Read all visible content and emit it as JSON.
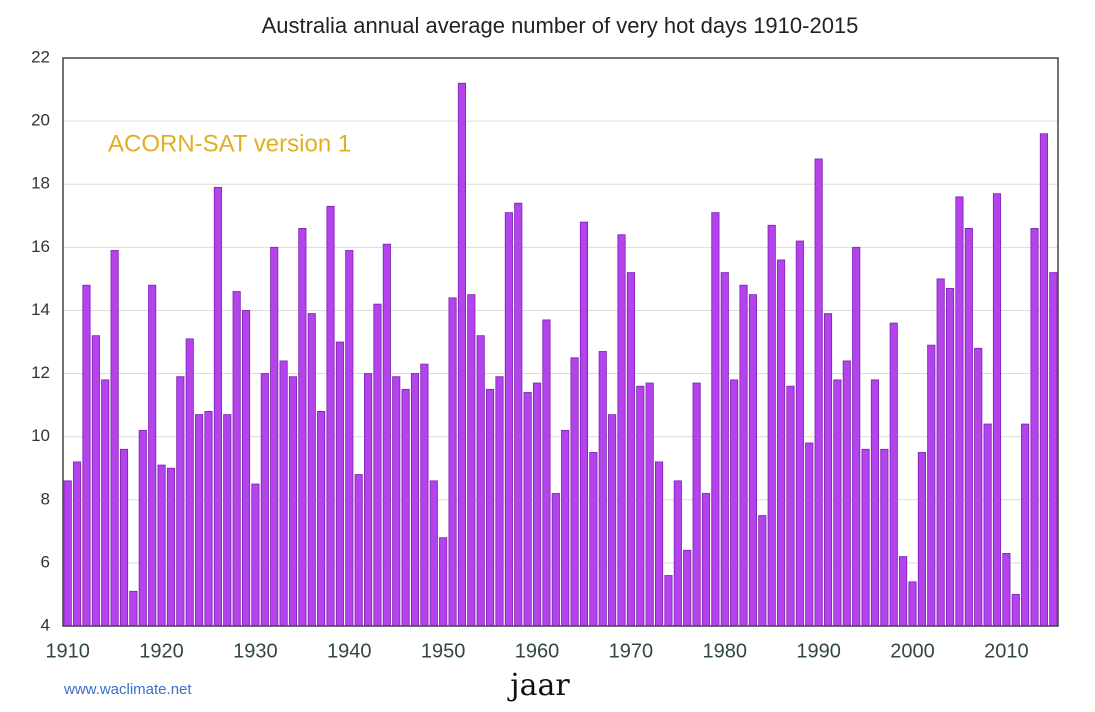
{
  "chart_data": {
    "type": "bar",
    "title": "Australia annual average number of very hot days 1910-2015",
    "annotation": "ACORN-SAT version 1",
    "source": "www.waclimate.net",
    "x_label": "jaar",
    "color": "#b443ec",
    "x": [
      1910,
      1911,
      1912,
      1913,
      1914,
      1915,
      1916,
      1917,
      1918,
      1919,
      1920,
      1921,
      1922,
      1923,
      1924,
      1925,
      1926,
      1927,
      1928,
      1929,
      1930,
      1931,
      1932,
      1933,
      1934,
      1935,
      1936,
      1937,
      1938,
      1939,
      1940,
      1941,
      1942,
      1943,
      1944,
      1945,
      1946,
      1947,
      1948,
      1949,
      1950,
      1951,
      1952,
      1953,
      1954,
      1955,
      1956,
      1957,
      1958,
      1959,
      1960,
      1961,
      1962,
      1963,
      1964,
      1965,
      1966,
      1967,
      1968,
      1969,
      1970,
      1971,
      1972,
      1973,
      1974,
      1975,
      1976,
      1977,
      1978,
      1979,
      1980,
      1981,
      1982,
      1983,
      1984,
      1985,
      1986,
      1987,
      1988,
      1989,
      1990,
      1991,
      1992,
      1993,
      1994,
      1995,
      1996,
      1997,
      1998,
      1999,
      2000,
      2001,
      2002,
      2003,
      2004,
      2005,
      2006,
      2007,
      2008,
      2009,
      2010,
      2011,
      2012,
      2013,
      2014,
      2015
    ],
    "values": [
      8.6,
      9.2,
      14.8,
      13.2,
      11.8,
      15.9,
      9.6,
      5.1,
      10.2,
      14.8,
      9.1,
      9.0,
      11.9,
      13.1,
      10.7,
      10.8,
      17.9,
      10.7,
      14.6,
      14.0,
      8.5,
      12.0,
      16.0,
      12.4,
      11.9,
      16.6,
      13.9,
      10.8,
      17.3,
      13.0,
      15.9,
      8.8,
      12.0,
      14.2,
      16.1,
      11.9,
      11.5,
      12.0,
      12.3,
      8.6,
      6.8,
      14.4,
      21.2,
      14.5,
      13.2,
      11.5,
      11.9,
      17.1,
      17.4,
      11.4,
      11.7,
      13.7,
      8.2,
      10.2,
      12.5,
      16.8,
      9.5,
      12.7,
      10.7,
      16.4,
      15.2,
      11.6,
      11.7,
      9.2,
      5.6,
      8.6,
      6.4,
      11.7,
      8.2,
      17.1,
      15.2,
      11.8,
      14.8,
      14.5,
      7.5,
      16.7,
      15.6,
      11.6,
      16.2,
      9.8,
      18.8,
      13.9,
      11.8,
      12.4,
      16.0,
      9.6,
      11.8,
      9.6,
      13.6,
      6.2,
      5.4,
      9.5,
      12.9,
      15.0,
      14.7,
      17.6,
      16.6,
      12.8,
      10.4,
      17.7,
      6.3,
      5.0,
      10.4,
      16.6,
      19.6,
      15.2
    ],
    "xlim": [
      1909.5,
      2015.5
    ],
    "xticks": [
      1910,
      1920,
      1930,
      1940,
      1950,
      1960,
      1970,
      1980,
      1990,
      2000,
      2010
    ],
    "ylim": [
      4,
      22
    ],
    "yticks": [
      4,
      6,
      8,
      10,
      12,
      14,
      16,
      18,
      20,
      22
    ],
    "grid": true
  }
}
